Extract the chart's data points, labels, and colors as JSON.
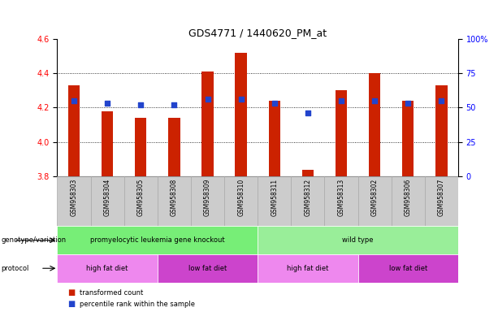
{
  "title": "GDS4771 / 1440620_PM_at",
  "samples": [
    "GSM958303",
    "GSM958304",
    "GSM958305",
    "GSM958308",
    "GSM958309",
    "GSM958310",
    "GSM958311",
    "GSM958312",
    "GSM958313",
    "GSM958302",
    "GSM958306",
    "GSM958307"
  ],
  "bar_values": [
    4.33,
    4.18,
    4.14,
    4.14,
    4.41,
    4.52,
    4.24,
    3.84,
    4.3,
    4.4,
    4.24,
    4.33
  ],
  "dot_values": [
    55,
    53,
    52,
    52,
    56,
    56,
    53,
    46,
    55,
    55,
    53,
    55
  ],
  "ylim": [
    3.8,
    4.6
  ],
  "ylim_right": [
    0,
    100
  ],
  "yticks_left": [
    3.8,
    4.0,
    4.2,
    4.4,
    4.6
  ],
  "yticks_right": [
    0,
    25,
    50,
    75,
    100
  ],
  "bar_color": "#cc2200",
  "dot_color": "#2244cc",
  "bar_bottom": 3.8,
  "genotype_label1": "promyelocytic leukemia gene knockout",
  "genotype_label2": "wild type",
  "genotype_color1": "#77ee77",
  "genotype_color2": "#99ee99",
  "protocol_labels": [
    "high fat diet",
    "low fat diet",
    "high fat diet",
    "low fat diet"
  ],
  "protocol_colors": [
    "#ee88ee",
    "#cc44cc",
    "#ee88ee",
    "#cc44cc"
  ],
  "protocol_starts": [
    0,
    3,
    6,
    9
  ],
  "protocol_ends": [
    3,
    6,
    9,
    12
  ],
  "legend_items": [
    {
      "label": "transformed count",
      "color": "#cc2200"
    },
    {
      "label": "percentile rank within the sample",
      "color": "#2244cc"
    }
  ],
  "plot_bg": "#ffffff",
  "xtick_bg": "#cccccc",
  "title_fontsize": 9,
  "label_fontsize": 7
}
